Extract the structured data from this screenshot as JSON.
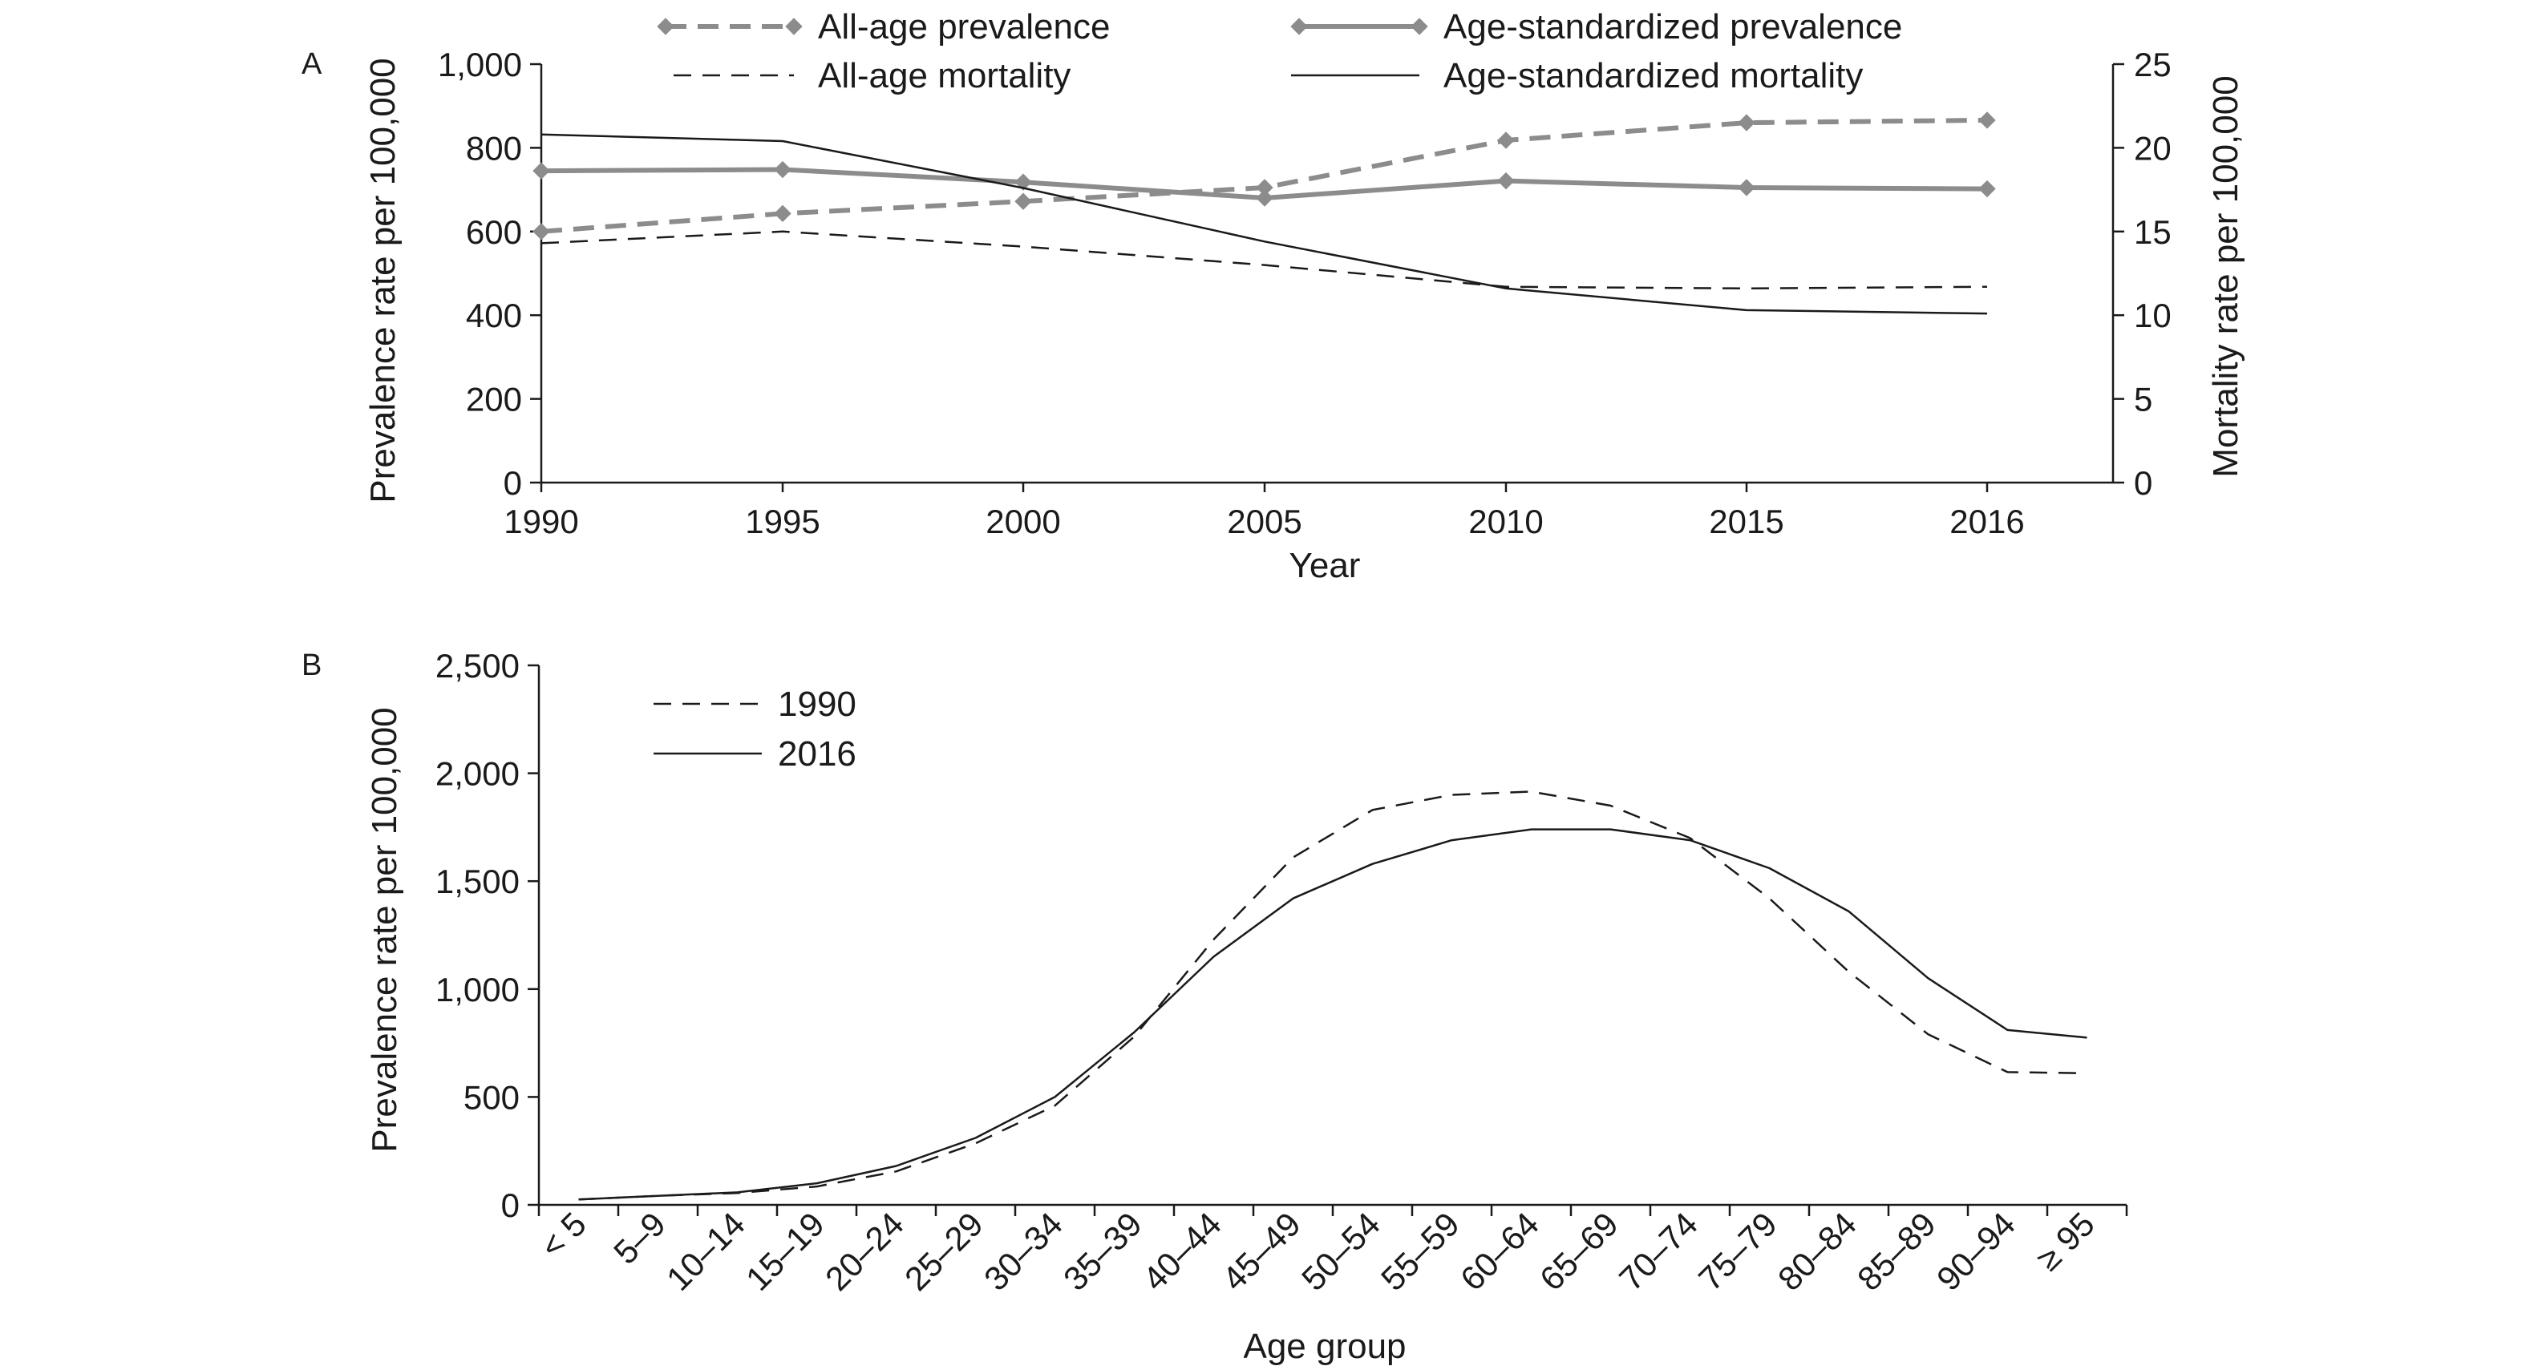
{
  "panels": [
    {
      "label": "A",
      "chart_data": {
        "type": "line",
        "xlabel": "Year",
        "ylabel_left": "Prevalence rate per 100,000",
        "ylabel_right": "Mortality rate per 100,000",
        "categories": [
          "1990",
          "1995",
          "2000",
          "2005",
          "2010",
          "2015",
          "2016"
        ],
        "ylim_left": [
          0,
          1000
        ],
        "ylim_right": [
          0,
          25
        ],
        "yticks_left": [
          "0",
          "200",
          "400",
          "600",
          "800",
          "1,000"
        ],
        "yticks_right": [
          "0",
          "5",
          "10",
          "15",
          "20",
          "25"
        ],
        "grid": false,
        "legend_position": "top",
        "series": [
          {
            "name": "All-age prevalence",
            "axis": "left",
            "style": "dashed-thick-marker",
            "color": "#8c8c8c",
            "values": [
              600,
              643,
              672,
              705,
              818,
              860,
              866
            ]
          },
          {
            "name": "Age-standardized prevalence",
            "axis": "left",
            "style": "solid-thick-marker",
            "color": "#8c8c8c",
            "values": [
              745,
              748,
              718,
              680,
              721,
              705,
              702
            ]
          },
          {
            "name": "All-age mortality",
            "axis": "right",
            "style": "dashed-thin",
            "color": "#1a1a1a",
            "values": [
              14.3,
              15.0,
              14.1,
              13.0,
              11.7,
              11.6,
              11.7
            ]
          },
          {
            "name": "Age-standardized mortality",
            "axis": "right",
            "style": "solid-thin",
            "color": "#1a1a1a",
            "values": [
              20.8,
              20.4,
              17.6,
              14.4,
              11.6,
              10.3,
              10.1
            ]
          }
        ]
      }
    },
    {
      "label": "B",
      "chart_data": {
        "type": "line",
        "xlabel": "Age group",
        "ylabel": "Prevalence rate per 100,000",
        "categories": [
          "< 5",
          "5–9",
          "10–14",
          "15–19",
          "20–24",
          "25–29",
          "30–34",
          "35–39",
          "40–44",
          "45–49",
          "50–54",
          "55–59",
          "60–64",
          "65–69",
          "70–74",
          "75–79",
          "80–84",
          "85–89",
          "90–94",
          "≥ 95"
        ],
        "ylim": [
          0,
          2500
        ],
        "yticks": [
          "0",
          "500",
          "1,000",
          "1,500",
          "2,000",
          "2,500"
        ],
        "grid": false,
        "legend_position": "top-left",
        "series": [
          {
            "name": "1990",
            "style": "dashed-thin",
            "color": "#1a1a1a",
            "values": [
              25,
              42,
              55,
              85,
              155,
              285,
              460,
              780,
              1230,
              1610,
              1830,
              1900,
              1915,
              1850,
              1700,
              1420,
              1080,
              790,
              615,
              610
            ]
          },
          {
            "name": "2016",
            "style": "solid-thin",
            "color": "#1a1a1a",
            "values": [
              25,
              42,
              58,
              100,
              180,
              310,
              500,
              800,
              1150,
              1420,
              1580,
              1690,
              1740,
              1740,
              1690,
              1560,
              1360,
              1050,
              810,
              775
            ]
          }
        ]
      }
    }
  ]
}
